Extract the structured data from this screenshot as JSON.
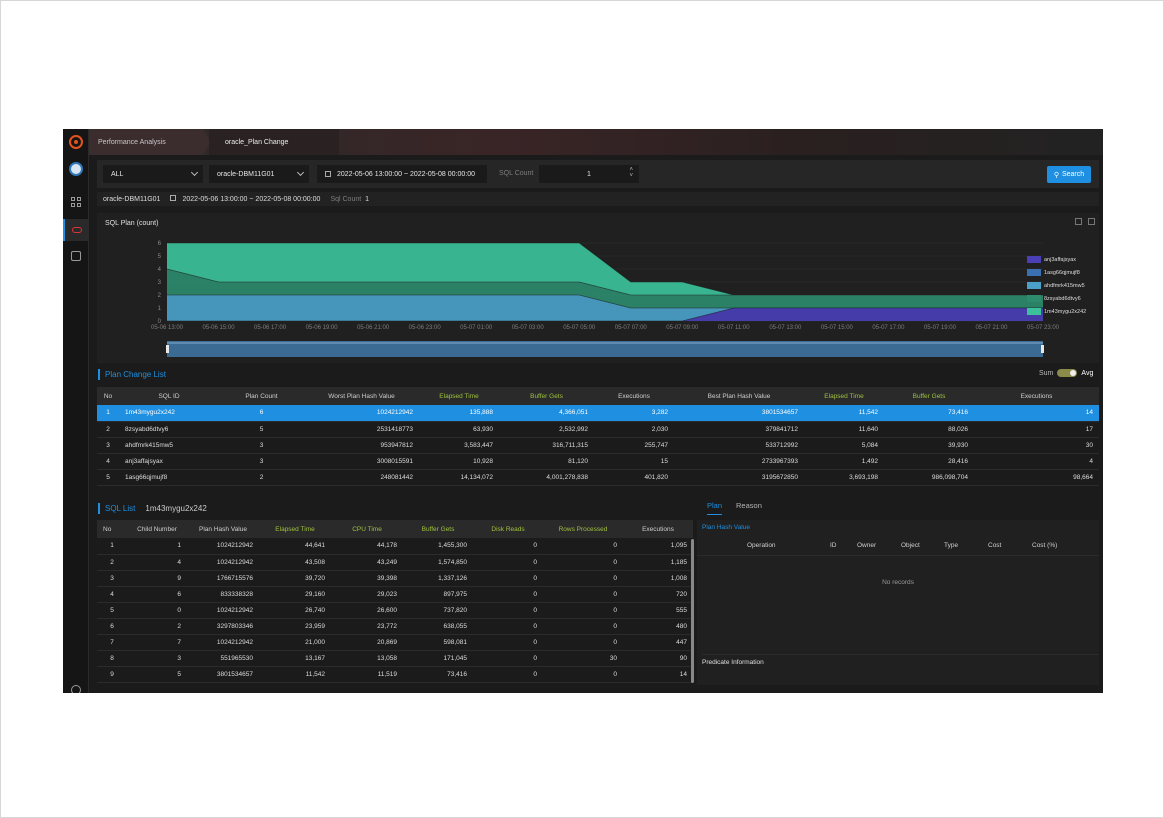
{
  "breadcrumb": [
    "Performance Analysis",
    "oracle_Plan Change"
  ],
  "filters": {
    "category": "ALL",
    "instance": "oracle-DBM11G01",
    "date_range": "2022-05-06 13:00:00  ~  2022-05-08 00:00:00",
    "sql_count_label": "SQL Count",
    "sql_count_value": "1",
    "search_label": "Search"
  },
  "info": {
    "instance": "oracle-DBM11G01",
    "date_range": "2022-05-06 13:00:00 ~ 2022-05-08 00:00:00",
    "sql_count_label": "Sql Count",
    "sql_count_value": "1"
  },
  "chart_panel": {
    "title": "SQL Plan (count)"
  },
  "chart_data": {
    "type": "area",
    "x": [
      "05-06 13:00",
      "05-06 15:00",
      "05-06 17:00",
      "05-06 19:00",
      "05-06 21:00",
      "05-06 23:00",
      "05-07 01:00",
      "05-07 03:00",
      "05-07 05:00",
      "05-07 07:00",
      "05-07 09:00",
      "05-07 11:00",
      "05-07 13:00",
      "05-07 15:00",
      "05-07 17:00",
      "05-07 19:00",
      "05-07 21:00",
      "05-07 23:00"
    ],
    "ylim": [
      0,
      6
    ],
    "yticks": [
      "0",
      "1",
      "2",
      "3",
      "4",
      "5",
      "6"
    ],
    "stacked": true,
    "series": [
      {
        "name": "anj3affajsyax",
        "color": "#4a3fb5",
        "values": [
          0,
          0,
          0,
          0,
          0,
          0,
          0,
          0,
          0,
          0,
          0,
          1,
          1,
          1,
          1,
          1,
          1,
          1
        ]
      },
      {
        "name": "1asg66qjmujf8",
        "color": "#3a6fb0",
        "values": [
          0,
          0,
          0,
          0,
          0,
          0,
          0,
          0,
          0,
          0,
          0,
          0,
          0,
          0,
          0,
          0,
          0,
          0
        ]
      },
      {
        "name": "ahdfmrk415mw5",
        "color": "#4aa0c8",
        "values": [
          2,
          2,
          2,
          2,
          2,
          2,
          2,
          2,
          2,
          1,
          1,
          0,
          0,
          0,
          0,
          0,
          0,
          0
        ]
      },
      {
        "name": "8zsyabd6dtvy6",
        "color": "#2d8a6c",
        "values": [
          2,
          1,
          1,
          1,
          1,
          1,
          1,
          1,
          1,
          1,
          1,
          1,
          1,
          1,
          1,
          1,
          1,
          1
        ]
      },
      {
        "name": "1m43mygu2x242",
        "color": "#3cc19a",
        "values": [
          2,
          3,
          3,
          3,
          3,
          3,
          3,
          3,
          3,
          1,
          1,
          0,
          0,
          0,
          0,
          0,
          0,
          0
        ]
      }
    ],
    "legend_position": "right"
  },
  "plan_change": {
    "title": "Plan Change List",
    "toggle": {
      "left": "Sum",
      "right": "Avg"
    },
    "columns": [
      "No",
      "SQL ID",
      "Plan Count",
      "Worst Plan Hash Value",
      "Elapsed Time",
      "Buffer Gets",
      "Executions",
      "Best Plan Hash Value",
      "Elapsed Time",
      "Buffer Gets",
      "Executions"
    ],
    "rows": [
      [
        "1",
        "1m43mygu2x242",
        "6",
        "1024212942",
        "135,888",
        "4,366,051",
        "3,282",
        "3801534657",
        "11,542",
        "73,416",
        "14"
      ],
      [
        "2",
        "8zsyabd6dtvy6",
        "5",
        "2531418773",
        "63,930",
        "2,532,992",
        "2,030",
        "379841712",
        "11,640",
        "88,026",
        "17"
      ],
      [
        "3",
        "ahdfmrk415mw5",
        "3",
        "953947812",
        "3,583,447",
        "316,711,315",
        "255,747",
        "533712992",
        "5,084",
        "39,930",
        "30"
      ],
      [
        "4",
        "anj3affajsyax",
        "3",
        "3008015591",
        "10,928",
        "81,120",
        "15",
        "2733967393",
        "1,492",
        "28,416",
        "4"
      ],
      [
        "5",
        "1asg66qjmujf8",
        "2",
        "248081442",
        "14,134,072",
        "4,001,278,838",
        "401,820",
        "3195672850",
        "3,693,198",
        "986,098,704",
        "98,664"
      ]
    ]
  },
  "sql_list": {
    "title": "SQL List",
    "sql_id": "1m43mygu2x242",
    "columns": [
      "No",
      "Child Number",
      "Plan Hash Value",
      "Elapsed Time",
      "CPU Time",
      "Buffer Gets",
      "Disk Reads",
      "Rows Processed",
      "Executions"
    ],
    "rows": [
      [
        "1",
        "1",
        "1024212942",
        "44,641",
        "44,178",
        "1,455,300",
        "0",
        "0",
        "1,095"
      ],
      [
        "2",
        "4",
        "1024212942",
        "43,508",
        "43,249",
        "1,574,850",
        "0",
        "0",
        "1,185"
      ],
      [
        "3",
        "9",
        "1766715576",
        "39,720",
        "39,398",
        "1,337,126",
        "0",
        "0",
        "1,008"
      ],
      [
        "4",
        "6",
        "833338328",
        "29,160",
        "29,023",
        "897,975",
        "0",
        "0",
        "720"
      ],
      [
        "5",
        "0",
        "1024212942",
        "26,740",
        "26,600",
        "737,820",
        "0",
        "0",
        "555"
      ],
      [
        "6",
        "2",
        "3297803346",
        "23,959",
        "23,772",
        "638,055",
        "0",
        "0",
        "480"
      ],
      [
        "7",
        "7",
        "1024212942",
        "21,000",
        "20,869",
        "598,081",
        "0",
        "0",
        "447"
      ],
      [
        "8",
        "3",
        "551965530",
        "13,167",
        "13,058",
        "171,045",
        "0",
        "30",
        "90"
      ],
      [
        "9",
        "5",
        "3801534657",
        "11,542",
        "11,519",
        "73,416",
        "0",
        "0",
        "14"
      ]
    ]
  },
  "plan_panel": {
    "tabs": [
      "Plan",
      "Reason"
    ],
    "plan_hash_label": "Plan Hash Value",
    "columns": [
      "Operation",
      "ID",
      "Owner",
      "Object",
      "Type",
      "Cost",
      "Cost (%)"
    ],
    "empty_text": "No records",
    "predicate_label": "Predicate Information"
  }
}
